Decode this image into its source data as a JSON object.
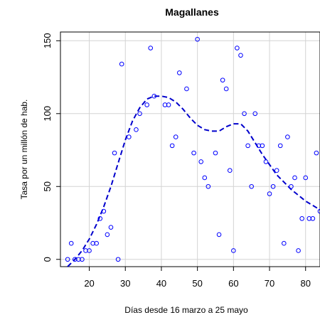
{
  "chart_data": {
    "type": "scatter",
    "title": "Magallanes",
    "xlabel": "Días desde 16 marzo a 25 mayo",
    "ylabel": "Tasa por un millón de hab.",
    "xlim": [
      12,
      84
    ],
    "ylim": [
      -5,
      156
    ],
    "xticks": [
      20,
      30,
      40,
      50,
      60,
      70,
      80
    ],
    "yticks": [
      0,
      50,
      100,
      150
    ],
    "grid": true,
    "colors": {
      "points": "#0000ff",
      "trend": "#0000cc",
      "grid": "#d3d3d3"
    },
    "points": [
      [
        14,
        0
      ],
      [
        15,
        11
      ],
      [
        16,
        0
      ],
      [
        17,
        0
      ],
      [
        18,
        0
      ],
      [
        19,
        6
      ],
      [
        20,
        6
      ],
      [
        21,
        11
      ],
      [
        22,
        11
      ],
      [
        23,
        28
      ],
      [
        24,
        33
      ],
      [
        25,
        17
      ],
      [
        26,
        22
      ],
      [
        27,
        73
      ],
      [
        28,
        0
      ],
      [
        29,
        134
      ],
      [
        31,
        84
      ],
      [
        33,
        89
      ],
      [
        34,
        100
      ],
      [
        36,
        106
      ],
      [
        37,
        145
      ],
      [
        38,
        112
      ],
      [
        41,
        106
      ],
      [
        42,
        106
      ],
      [
        43,
        78
      ],
      [
        44,
        84
      ],
      [
        45,
        128
      ],
      [
        47,
        117
      ],
      [
        49,
        73
      ],
      [
        50,
        151
      ],
      [
        51,
        67
      ],
      [
        52,
        56
      ],
      [
        53,
        50
      ],
      [
        55,
        73
      ],
      [
        56,
        17
      ],
      [
        57,
        123
      ],
      [
        58,
        117
      ],
      [
        59,
        61
      ],
      [
        60,
        6
      ],
      [
        61,
        145
      ],
      [
        62,
        140
      ],
      [
        63,
        100
      ],
      [
        64,
        78
      ],
      [
        65,
        50
      ],
      [
        66,
        100
      ],
      [
        67,
        78
      ],
      [
        68,
        78
      ],
      [
        69,
        67
      ],
      [
        70,
        45
      ],
      [
        71,
        50
      ],
      [
        72,
        61
      ],
      [
        73,
        78
      ],
      [
        74,
        11
      ],
      [
        75,
        84
      ],
      [
        76,
        50
      ],
      [
        77,
        56
      ],
      [
        78,
        6
      ],
      [
        79,
        28
      ],
      [
        80,
        56
      ],
      [
        81,
        28
      ],
      [
        82,
        28
      ],
      [
        83,
        73
      ],
      [
        84,
        33
      ]
    ],
    "trend": [
      [
        14,
        -5
      ],
      [
        16,
        0
      ],
      [
        18,
        6
      ],
      [
        20,
        14
      ],
      [
        22,
        24
      ],
      [
        24,
        36
      ],
      [
        26,
        50
      ],
      [
        28,
        66
      ],
      [
        30,
        82
      ],
      [
        32,
        95
      ],
      [
        34,
        104
      ],
      [
        36,
        110
      ],
      [
        38,
        112
      ],
      [
        40,
        112
      ],
      [
        42,
        111
      ],
      [
        44,
        108
      ],
      [
        46,
        103
      ],
      [
        48,
        97
      ],
      [
        50,
        92
      ],
      [
        52,
        89
      ],
      [
        54,
        88
      ],
      [
        56,
        88
      ],
      [
        58,
        91
      ],
      [
        60,
        93
      ],
      [
        62,
        93
      ],
      [
        64,
        88
      ],
      [
        66,
        80
      ],
      [
        68,
        72
      ],
      [
        70,
        65
      ],
      [
        72,
        58
      ],
      [
        74,
        53
      ],
      [
        76,
        48
      ],
      [
        78,
        44
      ],
      [
        80,
        40
      ],
      [
        82,
        37
      ],
      [
        84,
        34
      ]
    ]
  }
}
